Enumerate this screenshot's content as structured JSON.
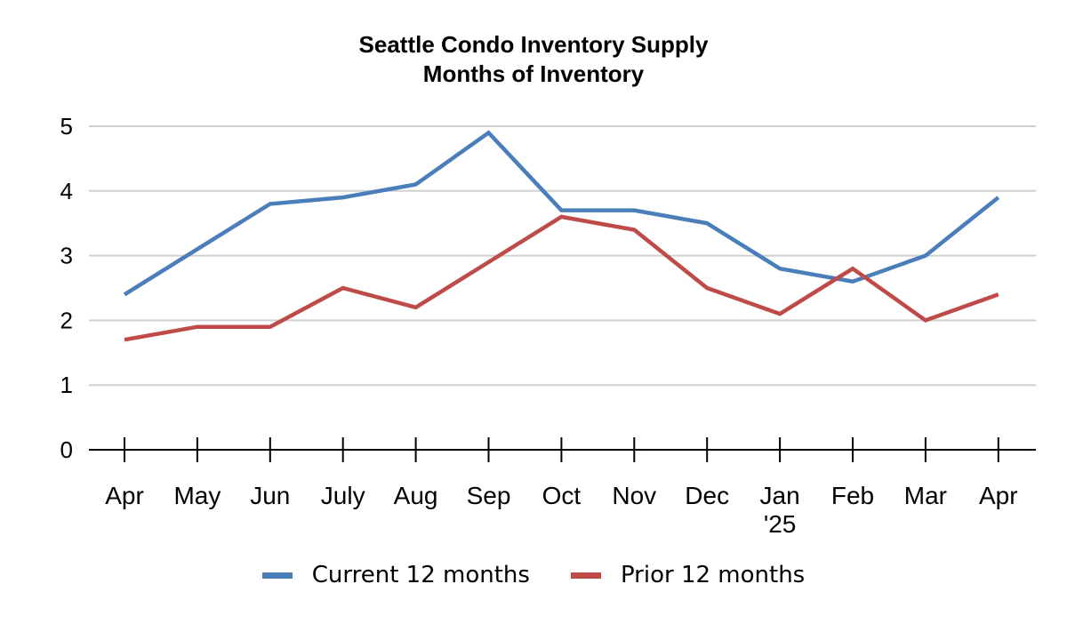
{
  "chart_data": {
    "type": "line",
    "title": [
      "Seattle Condo Inventory Supply",
      "Months of Inventory"
    ],
    "xlabel": "",
    "ylabel": "",
    "categories": [
      [
        "Apr"
      ],
      [
        "May"
      ],
      [
        "Jun"
      ],
      [
        "July"
      ],
      [
        "Aug"
      ],
      [
        "Sep"
      ],
      [
        "Oct"
      ],
      [
        "Nov"
      ],
      [
        "Dec"
      ],
      [
        "Jan",
        "'25"
      ],
      [
        "Feb"
      ],
      [
        "Mar"
      ],
      [
        "Apr"
      ]
    ],
    "yticks": [
      "0",
      "1",
      "2",
      "3",
      "4",
      "5"
    ],
    "ylim": [
      0,
      5
    ],
    "grid": true,
    "legend_position": "bottom",
    "series": [
      {
        "name": "Current 12 months",
        "color": "#4a7ebb",
        "values": [
          2.4,
          3.1,
          3.8,
          3.9,
          4.1,
          4.9,
          3.7,
          3.7,
          3.5,
          2.8,
          2.6,
          3.0,
          3.9
        ]
      },
      {
        "name": "Prior 12 months",
        "color": "#be4b48",
        "values": [
          1.7,
          1.9,
          1.9,
          2.5,
          2.2,
          2.9,
          3.6,
          3.4,
          2.5,
          2.1,
          2.8,
          2.0,
          2.4
        ]
      }
    ]
  }
}
